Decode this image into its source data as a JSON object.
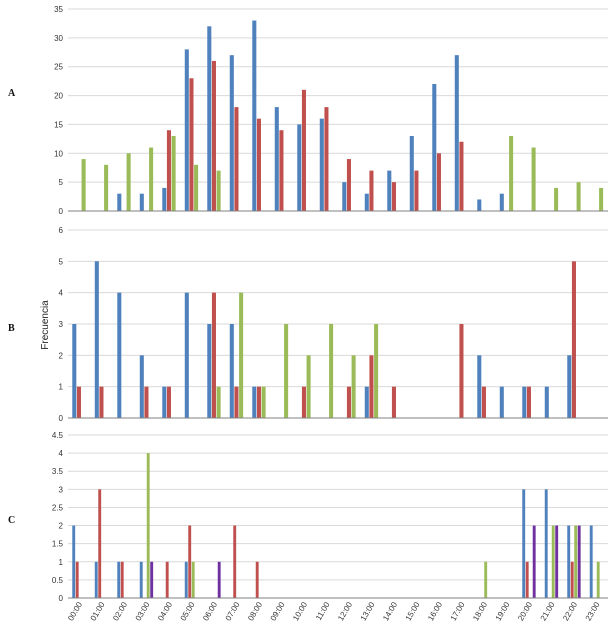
{
  "figure": {
    "ylabel": "Frecuencia",
    "x_categories": [
      "00:00",
      "01:00",
      "02:00",
      "03:00",
      "04:00",
      "05:00",
      "06:00",
      "07:00",
      "08:00",
      "09:00",
      "10:00",
      "11:00",
      "12:00",
      "13:00",
      "14:00",
      "15:00",
      "16:00",
      "17:00",
      "18:00",
      "19:00",
      "20:00",
      "21:00",
      "22:00",
      "23:00"
    ]
  },
  "colors": {
    "blue": "#4f81bd",
    "red": "#c0504d",
    "green": "#9bbb59",
    "purple": "#7030a0",
    "grid": "#d9d9d9",
    "axis": "#808080"
  },
  "chart_data": [
    {
      "panel": "A",
      "type": "bar",
      "ylim": [
        0,
        35
      ],
      "yticks": [
        0,
        5,
        10,
        15,
        20,
        25,
        30,
        35
      ],
      "grid": true,
      "series": [
        {
          "color": "#4f81bd",
          "values": [
            0,
            0,
            3,
            3,
            4,
            28,
            32,
            27,
            33,
            18,
            15,
            16,
            5,
            3,
            7,
            13,
            22,
            27,
            2,
            3,
            0,
            0,
            0,
            0
          ]
        },
        {
          "color": "#c0504d",
          "values": [
            0,
            0,
            0,
            0,
            14,
            23,
            26,
            18,
            16,
            14,
            21,
            18,
            9,
            7,
            5,
            7,
            10,
            12,
            0,
            0,
            0,
            0,
            0,
            0
          ]
        },
        {
          "color": "#9bbb59",
          "values": [
            9,
            8,
            10,
            11,
            13,
            8,
            7,
            0,
            0,
            0,
            0,
            0,
            0,
            0,
            0,
            0,
            0,
            0,
            0,
            13,
            11,
            4,
            5,
            4
          ]
        }
      ]
    },
    {
      "panel": "B",
      "type": "bar",
      "ylim": [
        0,
        6
      ],
      "yticks": [
        0,
        1,
        2,
        3,
        4,
        5,
        6
      ],
      "grid": true,
      "series": [
        {
          "color": "#4f81bd",
          "values": [
            3,
            5,
            4,
            2,
            1,
            4,
            3,
            3,
            1,
            0,
            0,
            0,
            0,
            1,
            0,
            0,
            0,
            0,
            2,
            1,
            1,
            1,
            2,
            0
          ]
        },
        {
          "color": "#c0504d",
          "values": [
            1,
            1,
            0,
            1,
            1,
            0,
            4,
            1,
            1,
            0,
            1,
            0,
            1,
            2,
            1,
            0,
            0,
            3,
            1,
            0,
            1,
            0,
            5,
            0
          ]
        },
        {
          "color": "#9bbb59",
          "values": [
            0,
            0,
            0,
            0,
            0,
            0,
            1,
            4,
            1,
            3,
            2,
            3,
            2,
            3,
            0,
            0,
            0,
            0,
            0,
            0,
            0,
            0,
            0,
            0
          ]
        }
      ]
    },
    {
      "panel": "C",
      "type": "bar",
      "ylim": [
        0,
        4.5
      ],
      "yticks": [
        0,
        0.5,
        1,
        1.5,
        2,
        2.5,
        3,
        3.5,
        4,
        4.5
      ],
      "ytick_labels": [
        "0",
        "0.5",
        "1",
        "1.5",
        "2",
        "2.5",
        "3",
        "3.5",
        "4",
        "4.5"
      ],
      "grid": true,
      "series": [
        {
          "color": "#4f81bd",
          "values": [
            2,
            1,
            1,
            1,
            0,
            1,
            0,
            0,
            0,
            0,
            0,
            0,
            0,
            0,
            0,
            0,
            0,
            0,
            0,
            0,
            3,
            3,
            2,
            2
          ]
        },
        {
          "color": "#c0504d",
          "values": [
            1,
            3,
            1,
            0,
            1,
            2,
            0,
            2,
            1,
            0,
            0,
            0,
            0,
            0,
            0,
            0,
            0,
            0,
            0,
            0,
            1,
            0,
            1,
            0
          ]
        },
        {
          "color": "#9bbb59",
          "values": [
            0,
            0,
            0,
            4,
            0,
            1,
            0,
            0,
            0,
            0,
            0,
            0,
            0,
            0,
            0,
            0,
            0,
            0,
            1,
            0,
            0,
            2,
            2,
            1
          ]
        },
        {
          "color": "#7030a0",
          "values": [
            0,
            0,
            0,
            1,
            0,
            0,
            1,
            0,
            0,
            0,
            0,
            0,
            0,
            0,
            0,
            0,
            0,
            0,
            0,
            0,
            2,
            2,
            2,
            0
          ]
        }
      ]
    }
  ]
}
